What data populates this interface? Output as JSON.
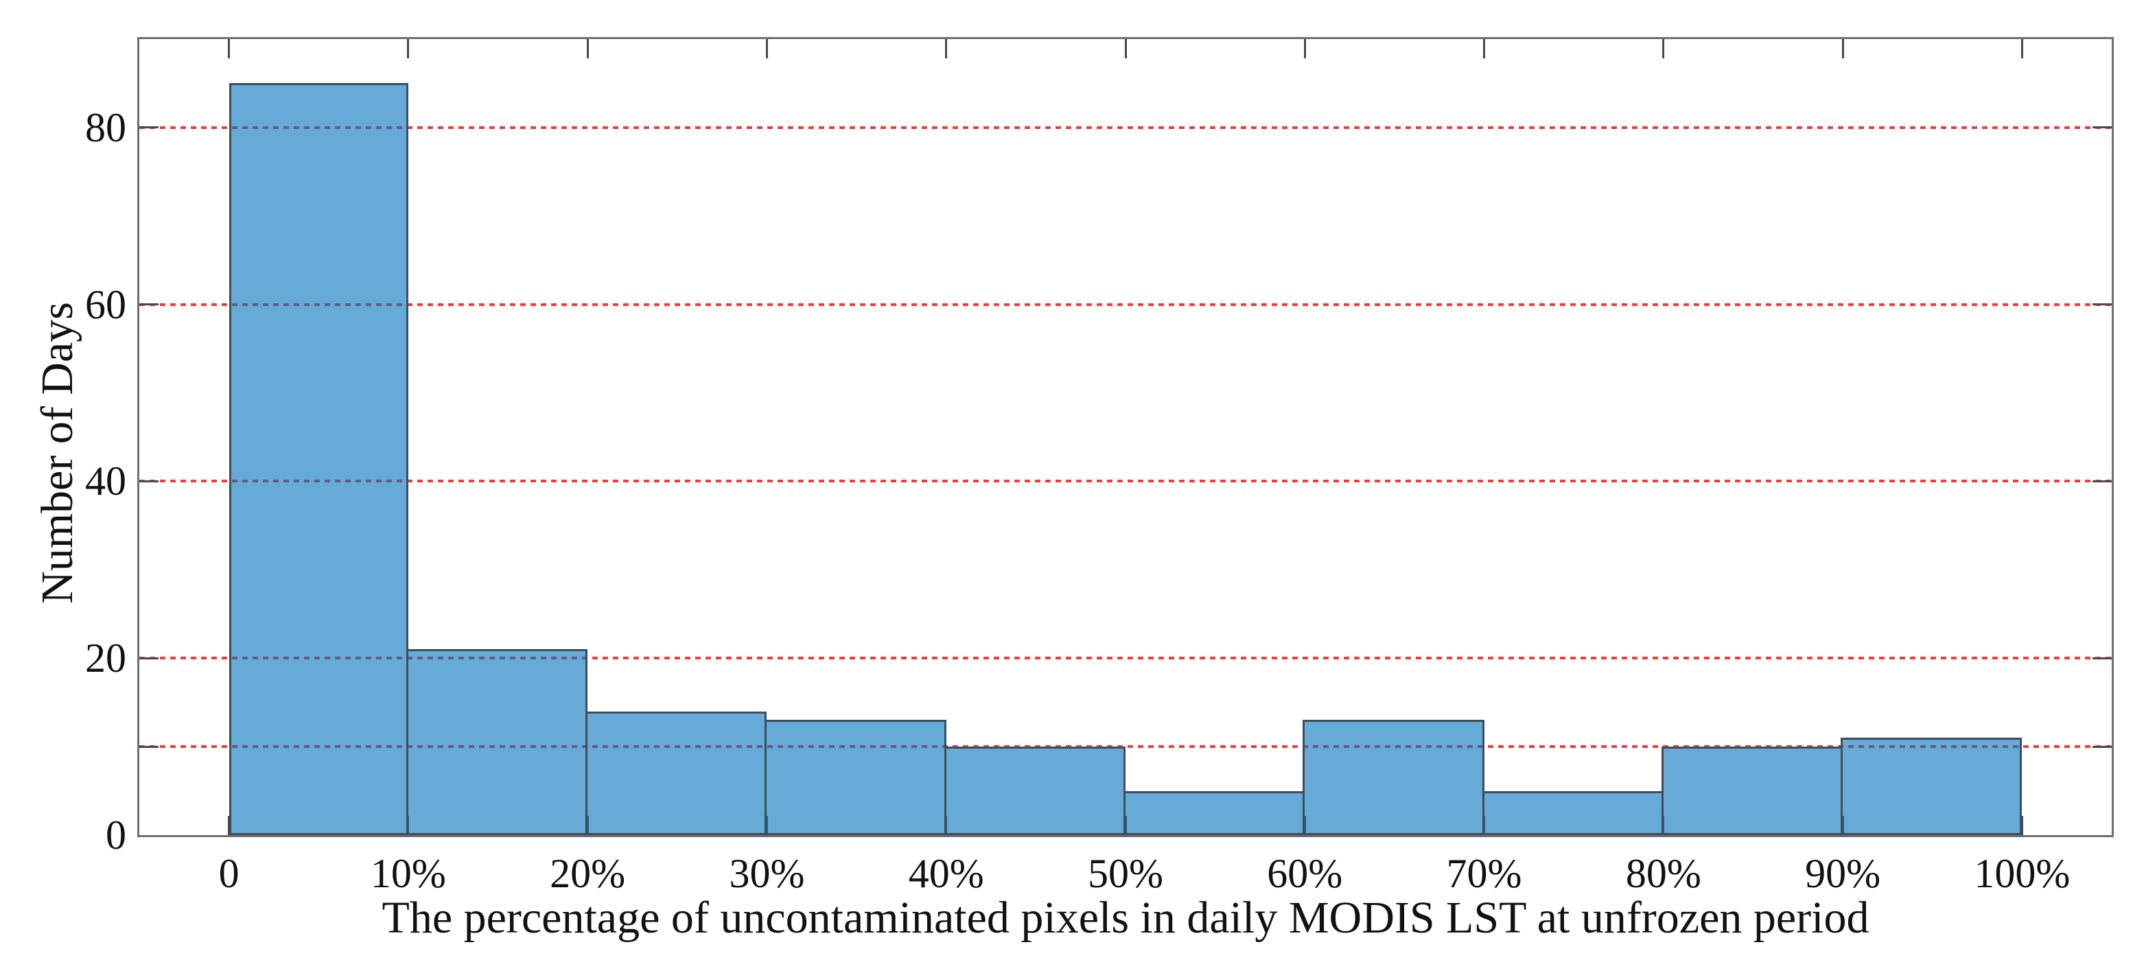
{
  "figure": {
    "background": "#ffffff"
  },
  "chart_data": {
    "type": "bar",
    "subtype": "histogram",
    "title": "",
    "xlabel": "The percentage of uncontaminated pixels in daily MODIS LST at unfrozen period",
    "ylabel": "Number of Days",
    "bin_edges_percent": [
      0,
      10,
      20,
      30,
      40,
      50,
      60,
      70,
      80,
      90,
      100
    ],
    "values": [
      85,
      21,
      14,
      13,
      10,
      5,
      13,
      5,
      10,
      11
    ],
    "x_tick_labels": [
      "0",
      "10%",
      "20%",
      "30%",
      "40%",
      "50%",
      "60%",
      "70%",
      "80%",
      "90%",
      "100%"
    ],
    "x_tick_values": [
      0,
      10,
      20,
      30,
      40,
      50,
      60,
      70,
      80,
      90,
      100
    ],
    "y_tick_labels": [
      "0",
      "20",
      "40",
      "60",
      "80"
    ],
    "y_tick_values": [
      0,
      20,
      40,
      60,
      80
    ],
    "y_minor_tick_values": [
      10
    ],
    "gridlines_y": [
      10,
      20,
      40,
      60,
      80
    ],
    "xlim": [
      -5,
      105
    ],
    "ylim": [
      0,
      90
    ],
    "grid": {
      "orientation": "horizontal",
      "style": "dashed",
      "color": "#f43b3b"
    },
    "legend": "none",
    "colors": {
      "bar_fill": "rgba(0,114,189,0.60)",
      "bar_fill_rendered": "#66aad7",
      "bar_edge": "#414c59",
      "axis_box": "#6e6e6e",
      "tick_mark": "#4a4a4a",
      "text": "#111111",
      "gridline_over_bar_rendered": "#66608a"
    }
  }
}
